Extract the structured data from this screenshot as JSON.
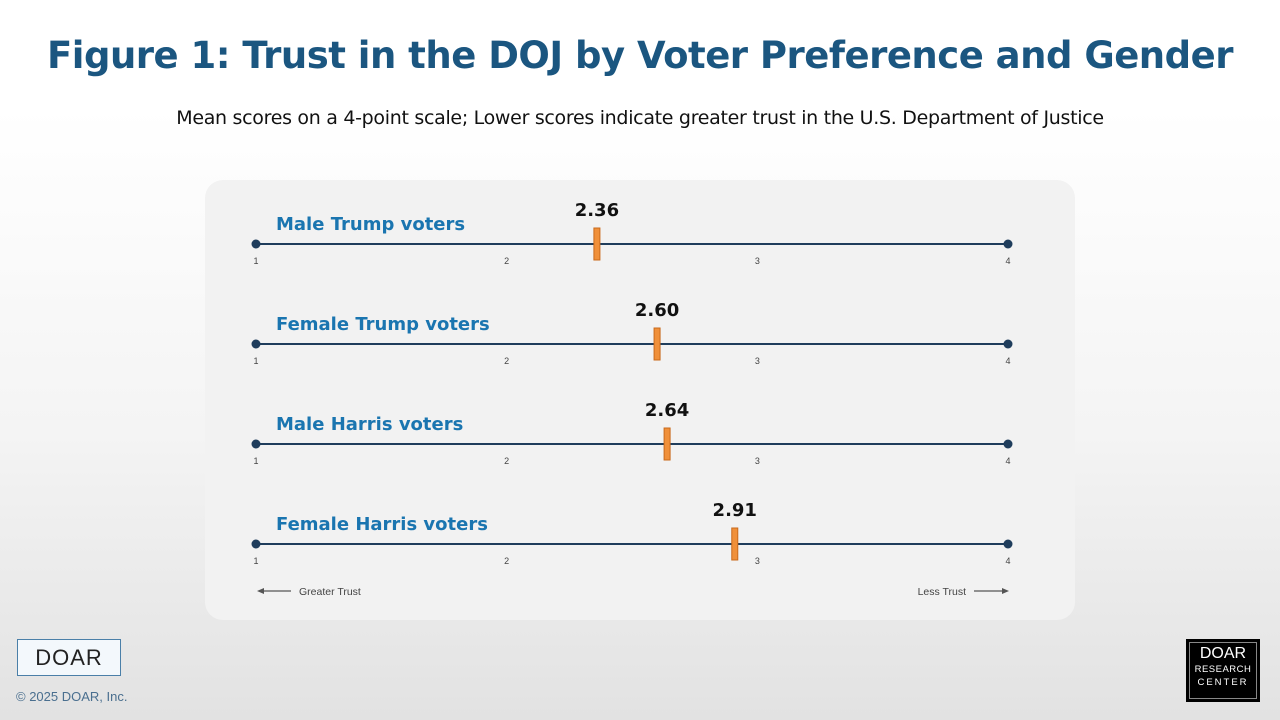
{
  "header": {
    "title": "Figure 1: Trust in the DOJ by Voter Preference and Gender",
    "subtitle": "Mean scores on a 4-point scale; Lower scores indicate greater trust in the U.S. Department of Justice"
  },
  "chart_data": {
    "type": "dot-scale",
    "xlim": [
      1,
      4
    ],
    "ticks": [
      "1",
      "2",
      "3",
      "4"
    ],
    "rows": [
      {
        "label": "Male Trump voters",
        "value": 2.36,
        "value_label": "2.36"
      },
      {
        "label": "Female Trump voters",
        "value": 2.6,
        "value_label": "2.60"
      },
      {
        "label": "Male Harris voters",
        "value": 2.64,
        "value_label": "2.64"
      },
      {
        "label": "Female Harris voters",
        "value": 2.91,
        "value_label": "2.91"
      }
    ],
    "left_annotation": "Greater Trust",
    "right_annotation": "Less Trust",
    "colors": {
      "label": "#1a75b0",
      "axis": "#1f3d5c",
      "marker": "#f0903a",
      "marker_border": "#c96a1c"
    }
  },
  "footer": {
    "logo_left": "DOAR",
    "copyright": "© 2025 DOAR, Inc.",
    "logo_right": [
      "DOAR",
      "RESEARCH",
      "CENTER"
    ]
  }
}
